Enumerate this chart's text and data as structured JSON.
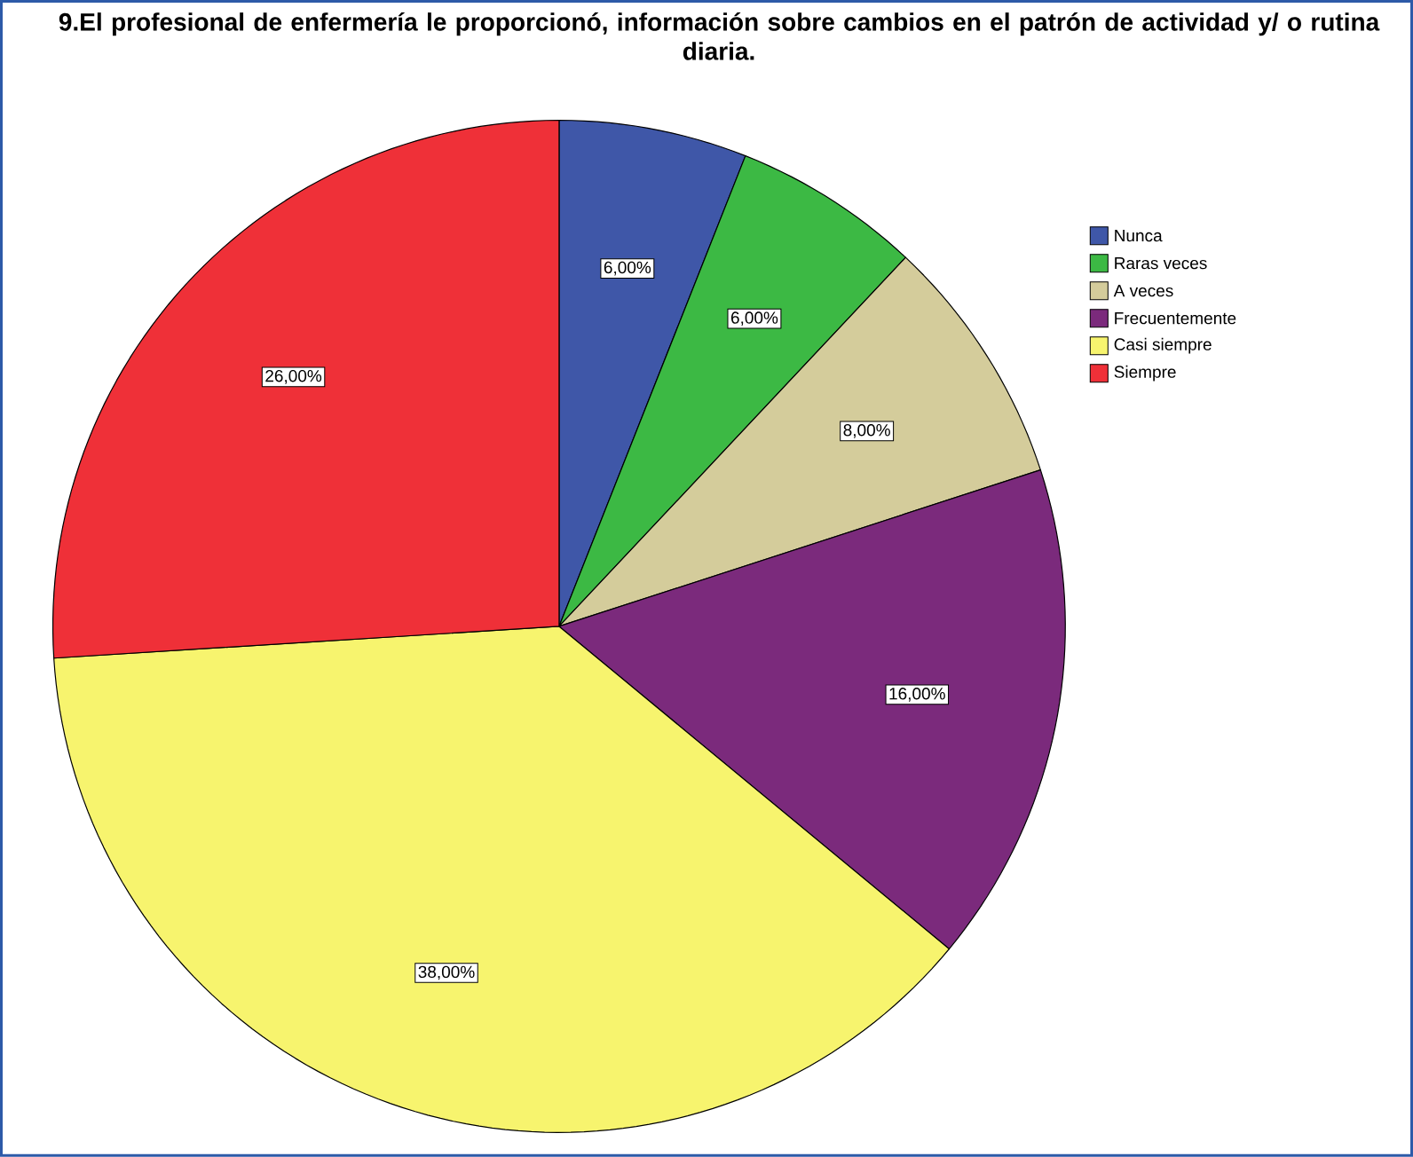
{
  "chart_data": {
    "type": "pie",
    "title": "9.El profesional de enfermería le proporcionó, información sobre cambios en el patrón de actividad y/ o rutina diaria.",
    "categories": [
      "Nunca",
      "Raras veces",
      "A veces",
      "Frecuentemente",
      "Casi siempre",
      "Siempre"
    ],
    "values": [
      6,
      6,
      8,
      16,
      38,
      26
    ],
    "colors": [
      "#3f57a8",
      "#3cb944",
      "#d4cc9b",
      "#7b2a7c",
      "#f7f46e",
      "#ef3038"
    ],
    "value_labels": [
      "6,00%",
      "6,00%",
      "8,00%",
      "16,00%",
      "38,00%",
      "26,00%"
    ],
    "legend": "top right"
  }
}
